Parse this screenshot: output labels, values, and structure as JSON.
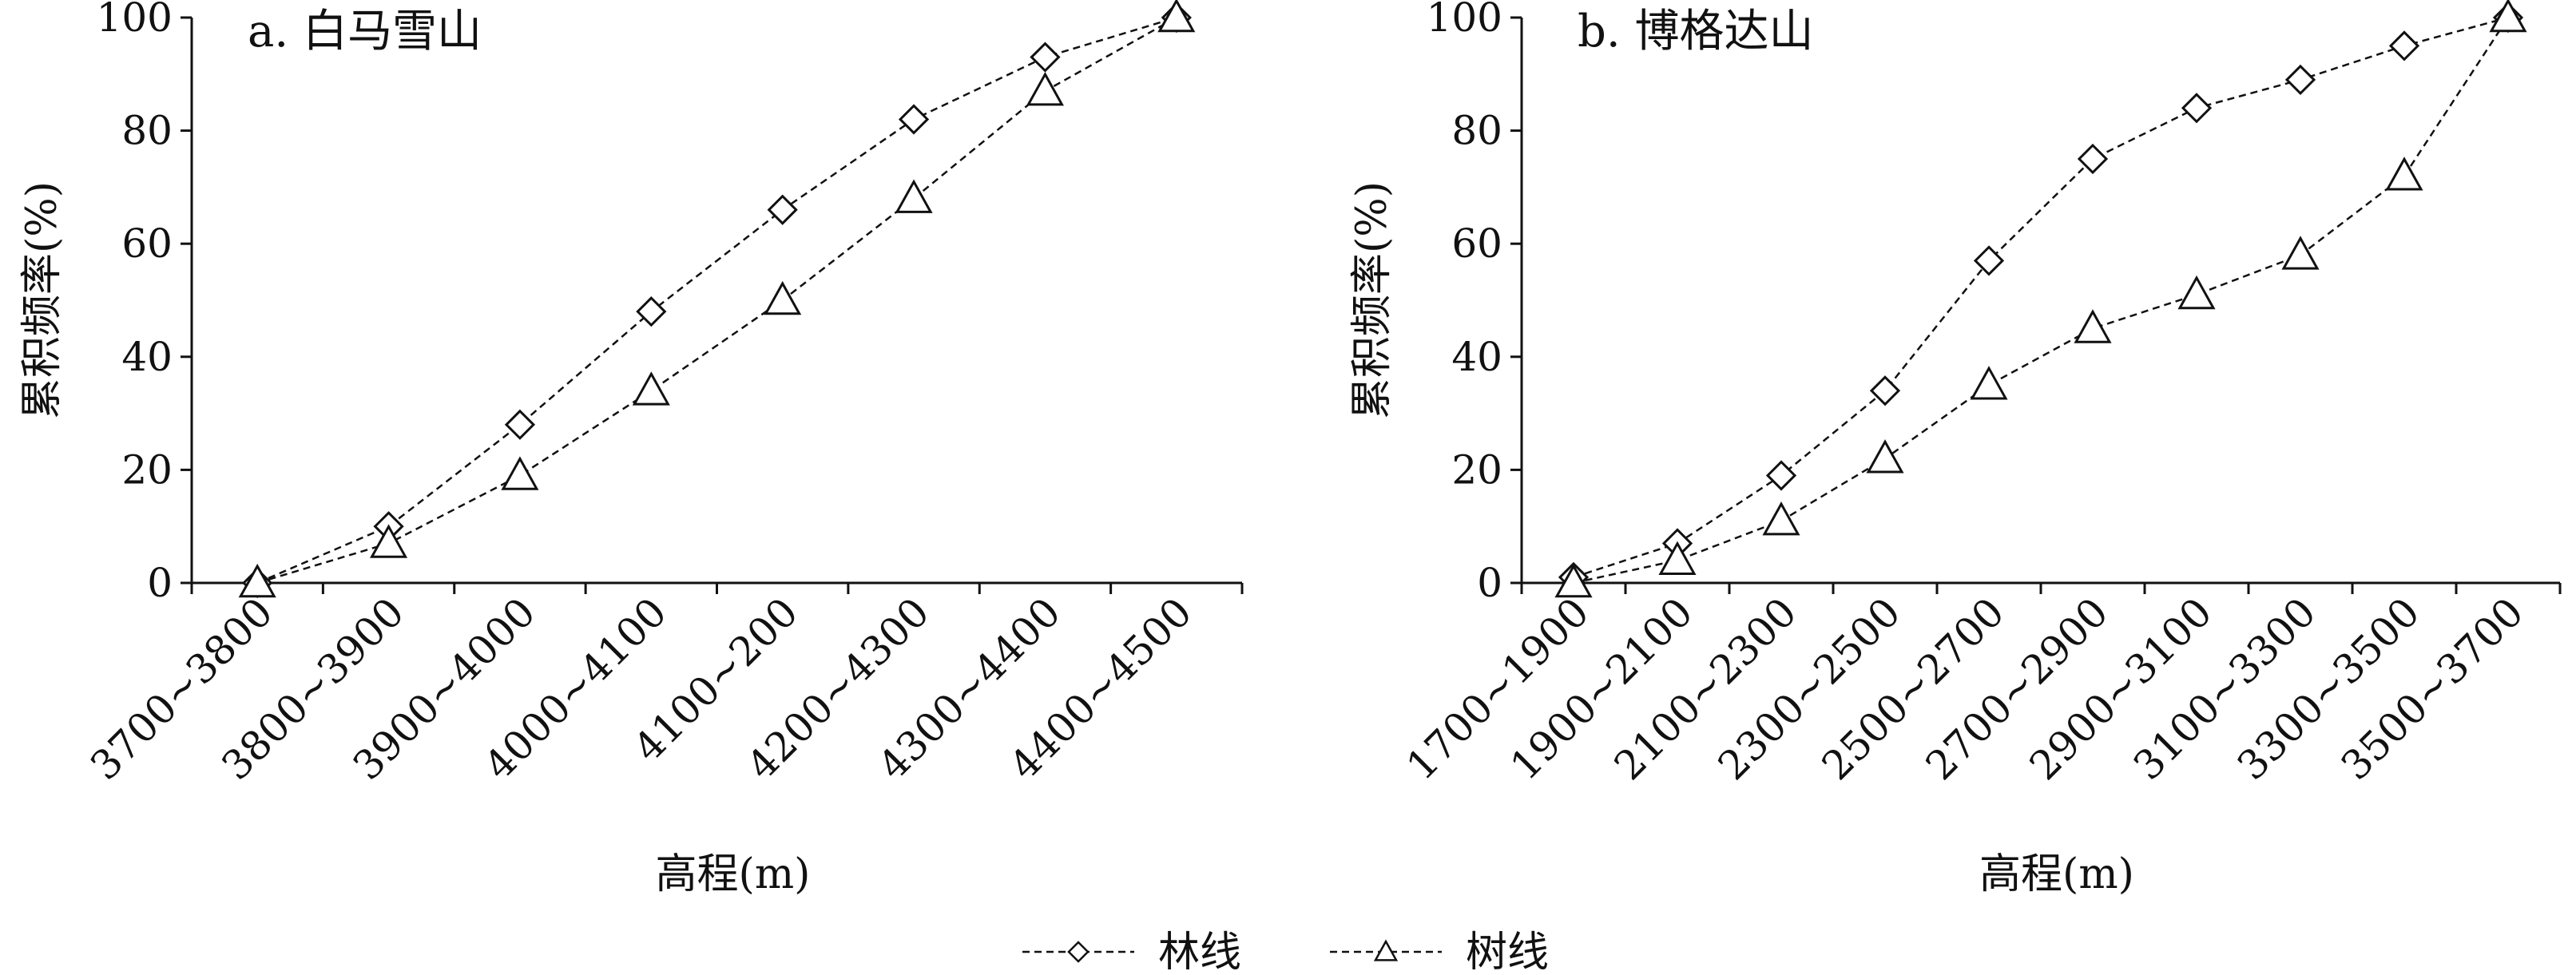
{
  "legend": {
    "items": [
      {
        "label": "林线",
        "marker": "diamond"
      },
      {
        "label": "树线",
        "marker": "triangle"
      }
    ]
  },
  "chart_data": [
    {
      "type": "line",
      "title": "a. 白马雪山",
      "xlabel": "高程(m)",
      "ylabel": "累积频率(%)",
      "ylim": [
        0,
        100
      ],
      "yticks": [
        0,
        20,
        40,
        60,
        80,
        100
      ],
      "categories": [
        "3700~3800",
        "3800~3900",
        "3900~4000",
        "4000~4100",
        "4100~200",
        "4200~4300",
        "4300~4400",
        "4400~4500"
      ],
      "series": [
        {
          "name": "林线",
          "marker": "diamond",
          "values": [
            0,
            10,
            28,
            48,
            66,
            82,
            93,
            100
          ]
        },
        {
          "name": "树线",
          "marker": "triangle",
          "values": [
            0,
            7,
            19,
            34,
            50,
            68,
            87,
            100
          ]
        }
      ]
    },
    {
      "type": "line",
      "title": "b. 博格达山",
      "xlabel": "高程(m)",
      "ylabel": "累积频率(%)",
      "ylim": [
        0,
        100
      ],
      "yticks": [
        0,
        20,
        40,
        60,
        80,
        100
      ],
      "categories": [
        "1700~1900",
        "1900~2100",
        "2100~2300",
        "2300~2500",
        "2500~2700",
        "2700~2900",
        "2900~3100",
        "3100~3300",
        "3300~3500",
        "3500~3700"
      ],
      "series": [
        {
          "name": "林线",
          "marker": "diamond",
          "values": [
            1,
            7,
            19,
            34,
            57,
            75,
            84,
            89,
            95,
            100
          ]
        },
        {
          "name": "树线",
          "marker": "triangle",
          "values": [
            0,
            4,
            11,
            22,
            35,
            45,
            51,
            58,
            72,
            100
          ]
        }
      ]
    }
  ]
}
